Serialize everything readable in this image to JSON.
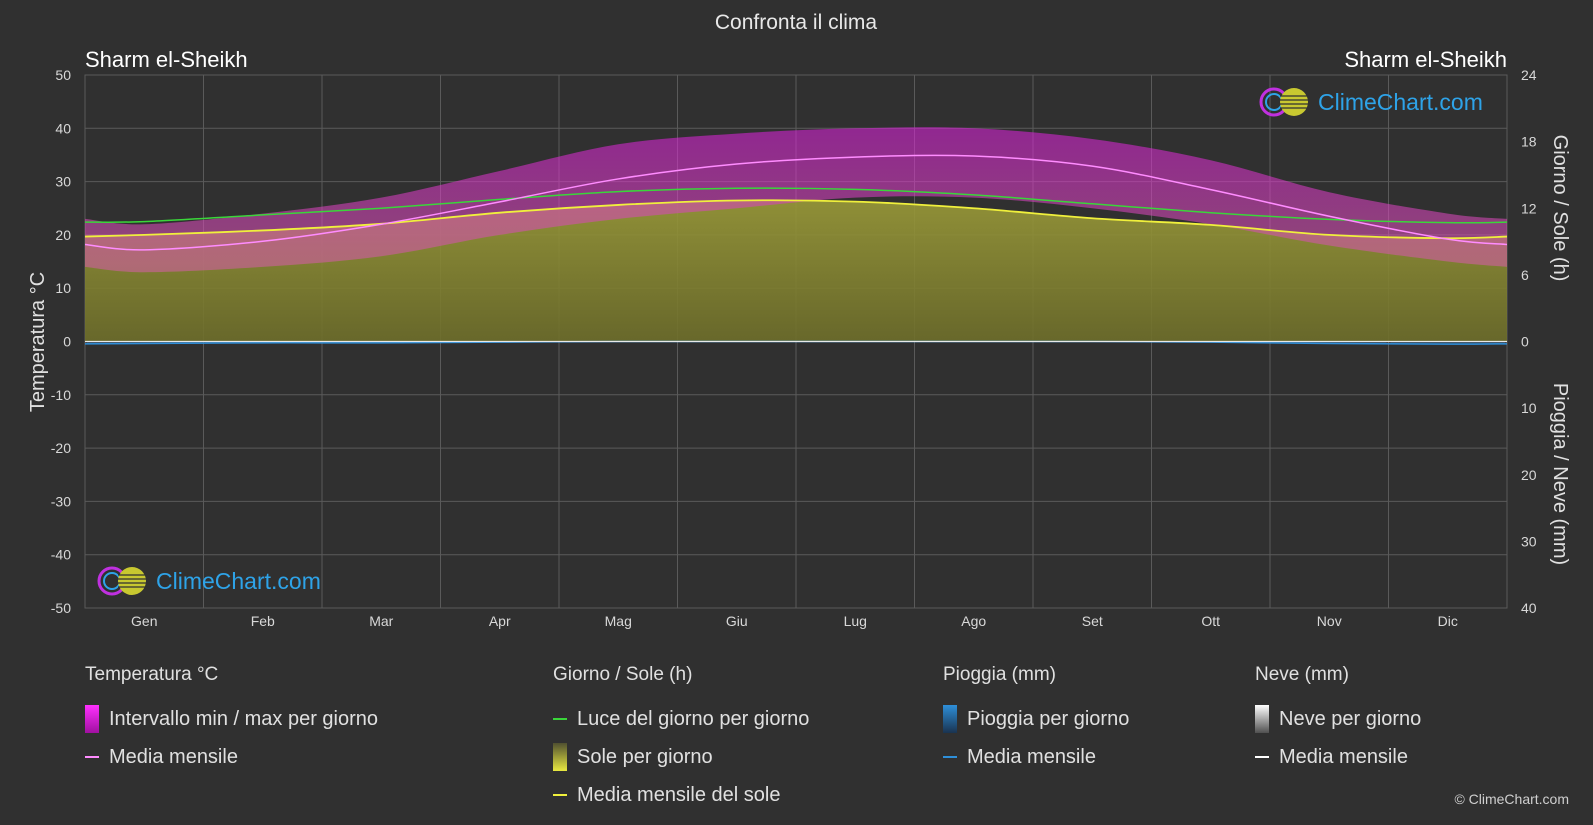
{
  "title": "Confronta il clima",
  "location_left": "Sharm el-Sheikh",
  "location_right": "Sharm el-Sheikh",
  "logo_text": "ClimeChart.com",
  "copyright": "© ClimeChart.com",
  "axes": {
    "left_label": "Temperatura °C",
    "right_top_label": "Giorno / Sole (h)",
    "right_bottom_label": "Pioggia / Neve (mm)",
    "left_ticks": [
      50,
      40,
      30,
      20,
      10,
      0,
      -10,
      -20,
      -30,
      -40,
      -50
    ],
    "right_top_ticks": [
      24,
      18,
      12,
      6,
      0
    ],
    "right_bottom_ticks": [
      10,
      20,
      30,
      40
    ]
  },
  "legend": {
    "temperature": {
      "header": "Temperatura °C",
      "range_label": "Intervallo min / max per giorno",
      "mean_label": "Media mensile"
    },
    "sun": {
      "header": "Giorno / Sole (h)",
      "daylight_label": "Luce del giorno per giorno",
      "sun_label": "Sole per giorno",
      "sun_mean_label": "Media mensile del sole"
    },
    "rain": {
      "header": "Pioggia (mm)",
      "rain_label": "Pioggia per giorno",
      "mean_label": "Media mensile"
    },
    "snow": {
      "header": "Neve (mm)",
      "snow_label": "Neve per giorno",
      "mean_label": "Media mensile"
    }
  },
  "colors": {
    "background": "#303030",
    "temp_range": "#d81fd8",
    "temp_mean": "#ff8cff",
    "daylight": "#3ad63a",
    "sunshine_fill": "#8c8c32",
    "sun_mean": "#f0f03c",
    "rain": "#2e8fd9",
    "snow": "#d0d0d0"
  },
  "chart_data": {
    "type": "area",
    "categories": [
      "Gen",
      "Feb",
      "Mar",
      "Apr",
      "Mag",
      "Giu",
      "Lug",
      "Ago",
      "Set",
      "Ott",
      "Nov",
      "Dic"
    ],
    "temp_ylim": [
      -50,
      50
    ],
    "sun_ylim": [
      0,
      24
    ],
    "precip_ylim": [
      0,
      40
    ],
    "series": [
      {
        "name": "Media mensile",
        "unit": "°C",
        "values": [
          17.2,
          18.8,
          22.0,
          26.2,
          30.5,
          33.3,
          34.6,
          34.8,
          32.9,
          28.5,
          23.5,
          19.2
        ]
      },
      {
        "name": "Temp max media",
        "unit": "°C",
        "values": [
          22,
          24,
          27,
          32,
          37,
          39,
          40,
          40,
          38,
          34,
          28,
          24
        ]
      },
      {
        "name": "Temp min media",
        "unit": "°C",
        "values": [
          13,
          14,
          16,
          20,
          23,
          25,
          27,
          27,
          25,
          22,
          18,
          15
        ]
      },
      {
        "name": "Luce del giorno per giorno",
        "unit": "h",
        "values": [
          10.8,
          11.4,
          12.0,
          12.8,
          13.5,
          13.8,
          13.7,
          13.2,
          12.4,
          11.6,
          11.0,
          10.7
        ]
      },
      {
        "name": "Media mensile del sole",
        "unit": "h",
        "values": [
          9.6,
          10.0,
          10.6,
          11.6,
          12.3,
          12.7,
          12.6,
          12.0,
          11.1,
          10.5,
          9.6,
          9.3
        ]
      },
      {
        "name": "Pioggia per giorno",
        "unit": "mm",
        "values": [
          0.3,
          0.2,
          0.2,
          0.1,
          0.0,
          0.0,
          0.0,
          0.0,
          0.0,
          0.1,
          0.3,
          0.4
        ]
      },
      {
        "name": "Neve per giorno",
        "unit": "mm",
        "values": [
          0,
          0,
          0,
          0,
          0,
          0,
          0,
          0,
          0,
          0,
          0,
          0
        ]
      }
    ]
  }
}
